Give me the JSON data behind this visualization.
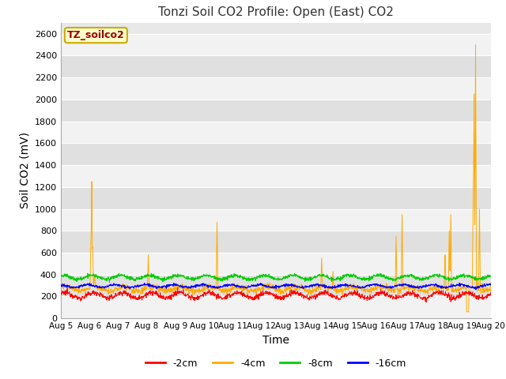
{
  "title": "Tonzi Soil CO2 Profile: Open (East) CO2",
  "ylabel": "Soil CO2 (mV)",
  "xlabel": "Time",
  "legend_label": "TZ_soilco2",
  "xtick_labels": [
    "Aug 5",
    "Aug 6",
    "Aug 7",
    "Aug 8",
    "Aug 9",
    "Aug 10",
    "Aug 11",
    "Aug 12",
    "Aug 13",
    "Aug 14",
    "Aug 15",
    "Aug 16",
    "Aug 17",
    "Aug 18",
    "Aug 19",
    "Aug 20"
  ],
  "line_colors": {
    "m2cm": "#ff0000",
    "m4cm": "#ffaa00",
    "m8cm": "#00cc00",
    "m16cm": "#0000ff"
  },
  "line_labels": [
    "-2cm",
    "-4cm",
    "-8cm",
    "-16cm"
  ],
  "fig_bg_color": "#ffffff",
  "plot_bg_color": "#e8e8e8",
  "band_color_light": "#f2f2f2",
  "band_color_dark": "#e0e0e0",
  "title_fontsize": 11,
  "axis_label_fontsize": 10,
  "tick_fontsize": 8,
  "ylim": [
    0,
    2700
  ],
  "yticks": [
    0,
    200,
    400,
    600,
    800,
    1000,
    1200,
    1400,
    1600,
    1800,
    2000,
    2200,
    2400,
    2600
  ]
}
